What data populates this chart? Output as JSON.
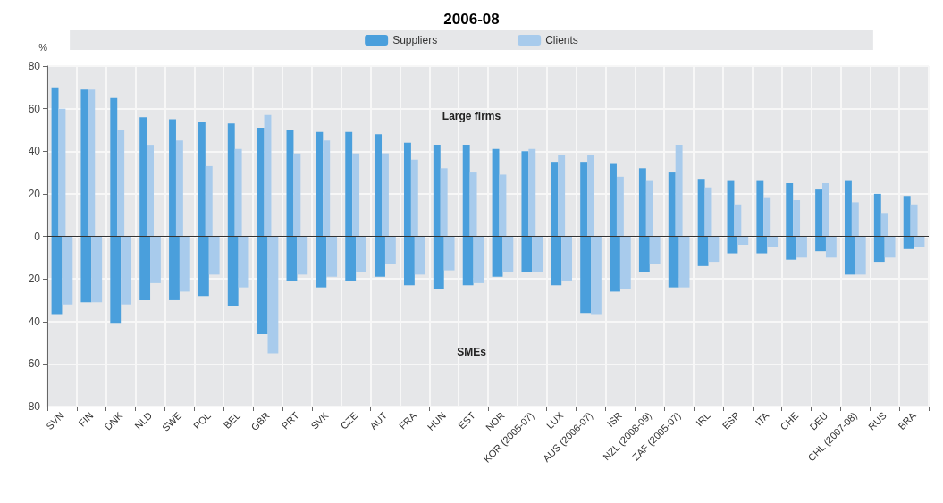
{
  "chart_data": {
    "type": "bar",
    "title": "2006-08",
    "ylabel": "%",
    "categories": [
      "SVN",
      "FIN",
      "DNK",
      "NLD",
      "SWE",
      "POL",
      "BEL",
      "GBR",
      "PRT",
      "SVK",
      "CZE",
      "AUT",
      "FRA",
      "HUN",
      "EST",
      "NOR",
      "KOR (2005-07)",
      "LUX",
      "AUS (2006-07)",
      "ISR",
      "NZL (2008-09)",
      "ZAF (2005-07)",
      "IRL",
      "ESP",
      "ITA",
      "CHE",
      "DEU",
      "CHL (2007-08)",
      "RUS",
      "BRA"
    ],
    "series": [
      {
        "name": "Suppliers",
        "color": "#4a9fdc",
        "values": [
          70,
          69,
          65,
          56,
          55,
          54,
          53,
          51,
          50,
          49,
          49,
          48,
          44,
          43,
          43,
          41,
          40,
          35,
          35,
          34,
          32,
          30,
          27,
          26,
          26,
          25,
          22,
          26,
          20,
          19
        ]
      },
      {
        "name": "Clients",
        "color": "#a8cbec",
        "values": [
          60,
          69,
          50,
          43,
          45,
          33,
          41,
          57,
          39,
          45,
          39,
          39,
          36,
          32,
          30,
          29,
          41,
          38,
          38,
          28,
          26,
          43,
          23,
          15,
          18,
          17,
          25,
          16,
          11,
          15
        ]
      },
      {
        "color": "#4a9fdc",
        "values": [
          -37,
          -31,
          -41,
          -30,
          -30,
          -28,
          -33,
          -46,
          -21,
          -24,
          -21,
          -19,
          -23,
          -25,
          -23,
          -19,
          -17,
          -23,
          -36,
          -26,
          -17,
          -24,
          -14,
          -8,
          -8,
          -11,
          -7,
          -18,
          -12,
          -6
        ]
      },
      {
        "color": "#a8cbec",
        "values": [
          -32,
          -31,
          -32,
          -22,
          -26,
          -18,
          -24,
          -55,
          -18,
          -19,
          -17,
          -13,
          -18,
          -16,
          -22,
          -17,
          -17,
          -21,
          -37,
          -25,
          -13,
          -24,
          -12,
          -4,
          -5,
          -10,
          -10,
          -18,
          -10,
          -5
        ]
      }
    ],
    "ylim": [
      -80,
      80
    ],
    "yticks": [
      {
        "value": -80,
        "label": "80"
      },
      {
        "value": -60,
        "label": "60"
      },
      {
        "value": -40,
        "label": "40"
      },
      {
        "value": -20,
        "label": "20"
      },
      0,
      20,
      40,
      60,
      80
    ],
    "annotations": [
      "Large firms",
      "SMEs"
    ],
    "grid": true,
    "legend": "top"
  }
}
